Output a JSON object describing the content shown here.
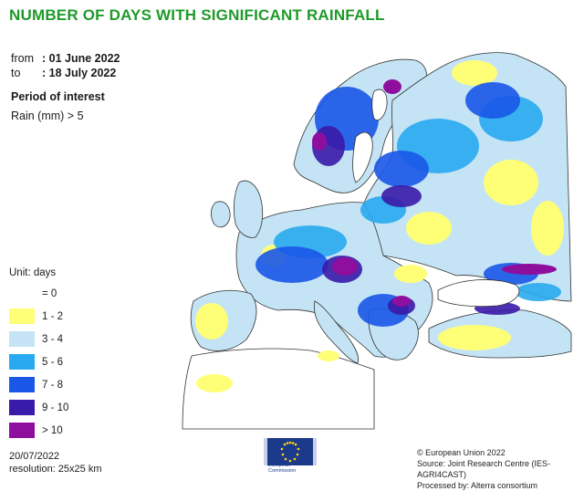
{
  "title": "NUMBER OF DAYS WITH SIGNIFICANT RAINFALL",
  "period": {
    "from_label": "from",
    "from_value": ": 01 June 2022",
    "to_label": "to",
    "to_value": ": 18 July 2022"
  },
  "period_of_interest": {
    "heading": "Period of interest",
    "parameter": "Rain (mm) > 5"
  },
  "legend": {
    "unit": "Unit: days",
    "classes": [
      {
        "label": "= 0",
        "color": "#ffffff"
      },
      {
        "label": "1 - 2",
        "color": "#ffff77"
      },
      {
        "label": "3 - 4",
        "color": "#c4e4f5"
      },
      {
        "label": "5 - 6",
        "color": "#29aaf0"
      },
      {
        "label": "7 - 8",
        "color": "#1a57e8"
      },
      {
        "label": "9 - 10",
        "color": "#3a1aa8"
      },
      {
        "label": "> 10",
        "color": "#8e0f9e"
      }
    ]
  },
  "colors": {
    "title": "#1f9a2a",
    "land_outline": "#333333",
    "sea": "#ffffff"
  },
  "footer": {
    "date": "20/07/2022",
    "resolution": "resolution: 25x25 km",
    "copyright": "© European Union 2022",
    "source": "Source: Joint Research Centre (IES-AGRI4CAST)",
    "processed": "Processed by: Alterra consortium"
  },
  "logo": {
    "line1": "European",
    "line2": "Commission"
  }
}
